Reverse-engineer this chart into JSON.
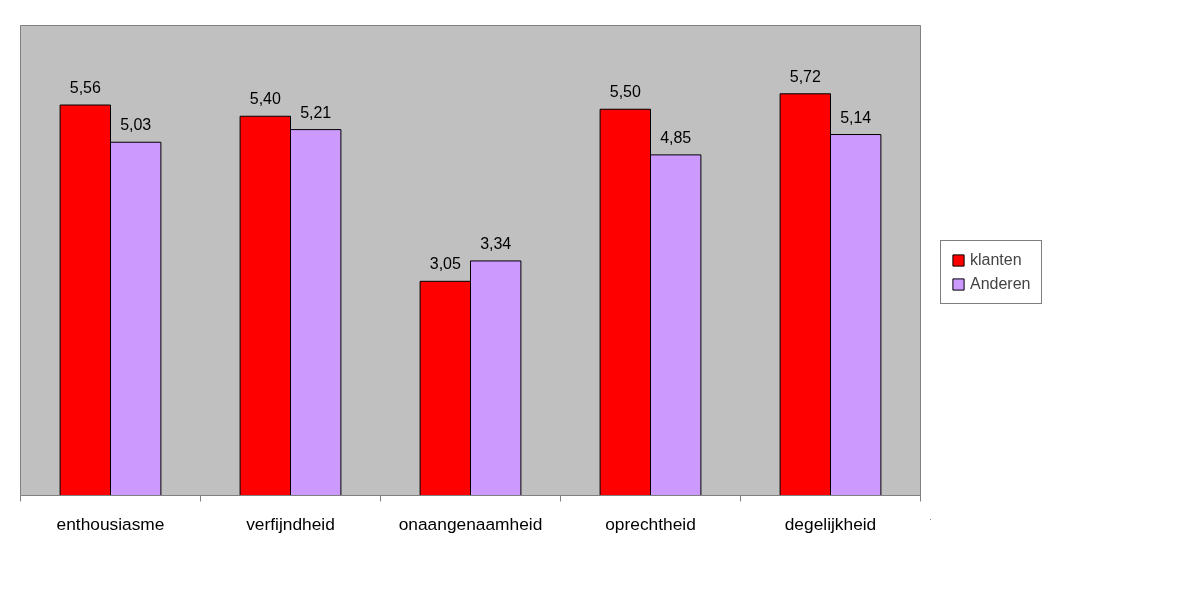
{
  "chart_data": {
    "type": "bar",
    "categories": [
      "enthousiasme",
      "verfijndheid",
      "onaangenaamheid",
      "oprechtheid",
      "degelijkheid"
    ],
    "series": [
      {
        "name": "klanten",
        "color": "#ff0000",
        "values": [
          5.56,
          5.4,
          3.05,
          5.5,
          5.72
        ],
        "value_labels": [
          "5,56",
          "5,40",
          "3,05",
          "5,50",
          "5,72"
        ]
      },
      {
        "name": "Anderen",
        "color": "#cc99ff",
        "values": [
          5.03,
          5.21,
          3.34,
          4.85,
          5.14
        ],
        "value_labels": [
          "5,03",
          "5,21",
          "3,34",
          "4,85",
          "5,14"
        ]
      }
    ],
    "legend": "right",
    "grid": false
  }
}
